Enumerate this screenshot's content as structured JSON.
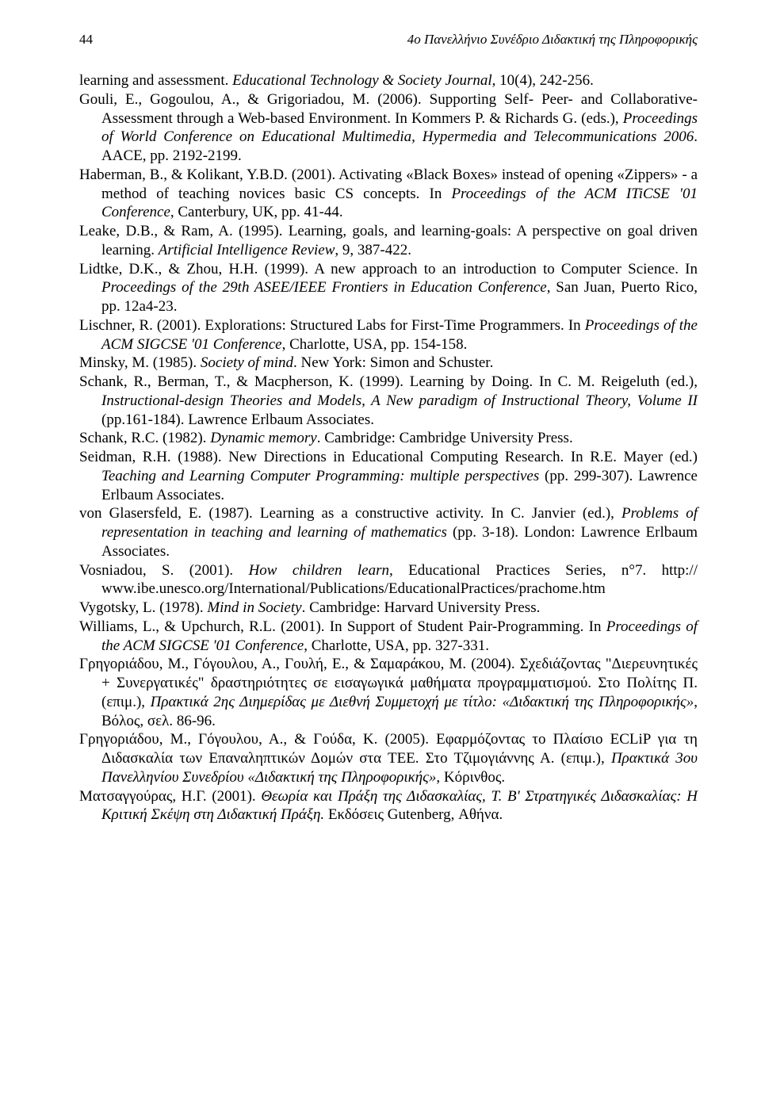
{
  "header": {
    "page_number": "44",
    "title": "4ο Πανελλήνιο Συνέδριο Διδακτική της Πληροφορικής"
  },
  "refs": {
    "r1a": "learning and assessment. ",
    "r1i": "Educational Technology & Society Journal",
    "r1b": ", 10(4), 242-256.",
    "r2a": "Gouli, E., Gogoulou, A., & Grigoriadou, M. (2006). Supporting Self- Peer- and Collaborative-Assessment through a Web-based Environment. In Kommers P. & Richards G. (eds.), ",
    "r2i": "Proceedings of World Conference on Educational Multimedia, Hypermedia and Telecommunications 2006",
    "r2b": ". AACE, pp. 2192-2199.",
    "r3a": "Haberman, B., & Kolikant, Y.B.D. (2001). Activating «Black Boxes» instead of opening «Zippers» - a method of teaching novices basic CS concepts. In ",
    "r3i": "Proceedings of the ACM ITiCSE '01 Conference",
    "r3b": ", Canterbury, UK, pp. 41-44.",
    "r4a": "Leake, D.B., & Ram, A. (1995). Learning, goals, and learning-goals: A perspective on goal driven learning. ",
    "r4i": "Artificial Intelligence Review",
    "r4b": ", 9, 387-422.",
    "r5a": "Lidtke, D.K., & Zhou, H.H. (1999). A new approach to an introduction to Computer Science. In ",
    "r5i": "Proceedings of the 29th ASEE/IEEE Frontiers in Education Conference",
    "r5b": ", San Juan, Puerto Rico, pp. 12a4-23.",
    "r6a": "Lischner, R. (2001). Explorations: Structured Labs for First-Time Programmers. In ",
    "r6i": "Proceedings of the ACM SIGCSE '01 Conference",
    "r6b": ", Charlotte, USA, pp. 154-158.",
    "r7a": "Minsky, M. (1985). ",
    "r7i": "Society of mind",
    "r7b": ". New York: Simon and Schuster.",
    "r8a": "Schank, R., Berman, T., & Macpherson, K. (1999). Learning by Doing. In C. M. Reigeluth (ed.), ",
    "r8i": "Instructional-design Theories and Models, A New paradigm of Instructional Theory, Volume II",
    "r8b": " (pp.161-184). Lawrence Erlbaum Associates.",
    "r9a": "Schank, R.C. (1982). ",
    "r9i": "Dynamic memory",
    "r9b": ". Cambridge: Cambridge University Press.",
    "r10a": "Seidman, R.H. (1988). New Directions in Educational Computing Research. In R.E. Mayer (ed.) ",
    "r10i": "Teaching and Learning Computer Programming: multiple perspectives",
    "r10b": " (pp. 299-307). Lawrence Erlbaum Associates.",
    "r11a": "von Glasersfeld, E. (1987). Learning as a constructive activity. In C. Janvier (ed.), ",
    "r11i": "Problems of representation in teaching and learning of mathematics",
    "r11b": " (pp. 3-18). London: Lawrence Erlbaum Associates.",
    "r12a": "Vosniadou, S. (2001). ",
    "r12i": "How children learn,",
    "r12b": " Educational Practices Series, n°7. http:// www.ibe.unesco.org/International/Publications/EducationalPractices/prachome.htm",
    "r13a": "Vygotsky, L. (1978). ",
    "r13i": "Mind in Society",
    "r13b": ". Cambridge: Harvard University Press.",
    "r14a": "Williams, L., & Upchurch, R.L. (2001). In Support of Student Pair-Programming. In ",
    "r14i": "Proceedings of the ACM SIGCSE '01 Conference",
    "r14b": ", Charlotte, USA, pp. 327-331.",
    "r15a": "Γρηγοριάδου, Μ., Γόγουλου, Α., Γουλή, Ε., & Σαμαράκου, Μ. (2004). Σχεδιάζοντας \"Διερευνητικές + Συνεργατικές\" δραστηριότητες σε εισαγωγικά μαθήματα προγραμματισμού. Στο Πολίτης Π. (επιμ.), ",
    "r15i": "Πρακτικά 2ης Διημερίδας με Διεθνή Συμμετοχή με τίτλο: «Διδακτική της Πληροφορικής»",
    "r15b": ", Βόλος, σελ. 86-96.",
    "r16a": "Γρηγοριάδου, Μ., Γόγουλου, Α., & Γούδα, Κ. (2005). Εφαρμόζοντας το Πλαίσιο ECLiP για τη Διδασκαλία των Επαναληπτικών Δομών στα ΤΕΕ. Στο Τζιμογιάννης Α. (επιμ.), ",
    "r16i": "Πρακτικά 3ου Πανελληνίου Συνεδρίου «Διδακτική της Πληροφορικής»",
    "r16b": ", Κόρινθος.",
    "r17a": "Ματσαγγούρας, Η.Γ. (2001). ",
    "r17i": "Θεωρία και Πράξη της Διδασκαλίας, Τ. Β' Στρατηγικές Διδασκαλίας: Η Κριτική Σκέψη στη Διδακτική Πράξη.",
    "r17b": " Εκδόσεις Gutenberg, Αθήνα."
  }
}
